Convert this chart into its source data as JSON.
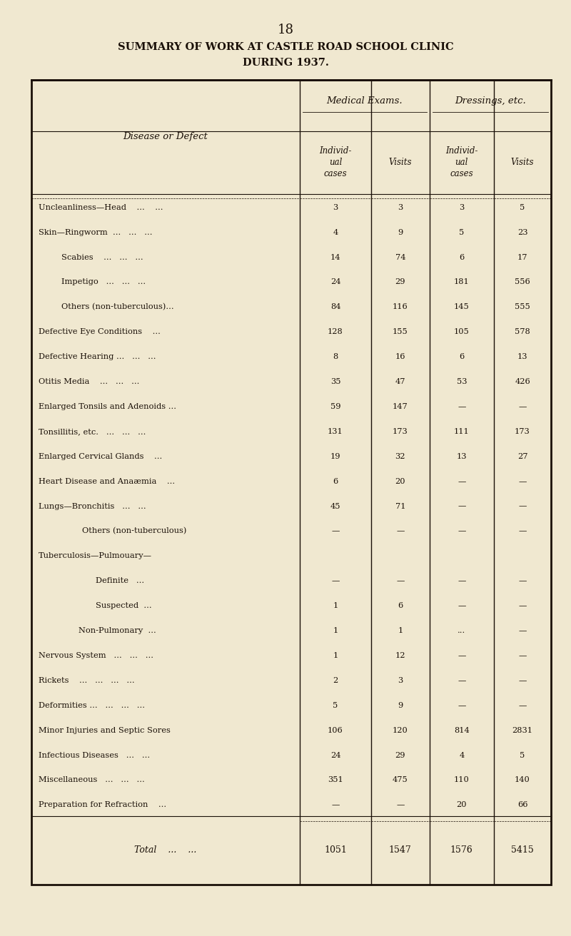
{
  "page_number": "18",
  "title_line1": "SUMMARY OF WORK AT CASTLE ROAD SCHOOL CLINIC",
  "title_line2": "DURING 1937.",
  "bg_color": "#f0e8d0",
  "text_color": "#1a1008",
  "col_header_1": "Medical Exams.",
  "col_header_2": "Dressings, etc.",
  "sub_col_1": "Individ-\nual\ncases",
  "sub_col_2": "Visits",
  "sub_col_3": "Individ-\nual\ncases",
  "sub_col_4": "Visits",
  "row_label_col": "Disease or Defect",
  "rows": [
    {
      "label": "Uncleanliness—Head    ...    ...",
      "indent": 0,
      "v1": "3",
      "v2": "3",
      "v3": "3",
      "v4": "5"
    },
    {
      "label": "Skin—Ringworm  ...   ...   ...",
      "indent": 0,
      "v1": "4",
      "v2": "9",
      "v3": "5",
      "v4": "23"
    },
    {
      "label": "Scabies    ...   ...   ...",
      "indent": 1,
      "v1": "14",
      "v2": "74",
      "v3": "6",
      "v4": "17"
    },
    {
      "label": "Impetigo   ...   ...   ...",
      "indent": 1,
      "v1": "24",
      "v2": "29",
      "v3": "181",
      "v4": "556"
    },
    {
      "label": "Others (non-tuberculous)...",
      "indent": 1,
      "v1": "84",
      "v2": "116",
      "v3": "145",
      "v4": "555"
    },
    {
      "label": "Defective Eye Conditions    ...",
      "indent": 0,
      "v1": "128",
      "v2": "155",
      "v3": "105",
      "v4": "578"
    },
    {
      "label": "Defective Hearing ...   ...   ...",
      "indent": 0,
      "v1": "8",
      "v2": "16",
      "v3": "6",
      "v4": "13"
    },
    {
      "label": "Otitis Media    ...   ...   ...",
      "indent": 0,
      "v1": "35",
      "v2": "47",
      "v3": "53",
      "v4": "426"
    },
    {
      "label": "Enlarged Tonsils and Adenoids ...",
      "indent": 0,
      "v1": "59",
      "v2": "147",
      "v3": "—",
      "v4": "—"
    },
    {
      "label": "Tonsillitis, etc.   ...   ...   ...",
      "indent": 0,
      "v1": "131",
      "v2": "173",
      "v3": "111",
      "v4": "173"
    },
    {
      "label": "Enlarged Cervical Glands    ...",
      "indent": 0,
      "v1": "19",
      "v2": "32",
      "v3": "13",
      "v4": "27"
    },
    {
      "label": "Heart Disease and Anaæmia    ...",
      "indent": 0,
      "v1": "6",
      "v2": "20",
      "v3": "—",
      "v4": "—"
    },
    {
      "label": "Lungs—Bronchitis   ...   ...",
      "indent": 0,
      "v1": "45",
      "v2": "71",
      "v3": "—",
      "v4": "—"
    },
    {
      "label": "        Others (non-tuberculous)",
      "indent": 1,
      "v1": "—",
      "v2": "—",
      "v3": "—",
      "v4": "—"
    },
    {
      "label": "Tuberculosis—Pulmouary—",
      "indent": 0,
      "v1": "",
      "v2": "",
      "v3": "",
      "v4": ""
    },
    {
      "label": "Definite   ...",
      "indent": 3,
      "v1": "—",
      "v2": "—",
      "v3": "—",
      "v4": "—"
    },
    {
      "label": "Suspected  ...",
      "indent": 3,
      "v1": "1",
      "v2": "6",
      "v3": "—",
      "v4": "—"
    },
    {
      "label": "Non-Pulmonary  ...",
      "indent": 2,
      "v1": "1",
      "v2": "1",
      "v3": "...",
      "v4": "—"
    },
    {
      "label": "Nervous System   ...   ...   ...",
      "indent": 0,
      "v1": "1",
      "v2": "12",
      "v3": "—",
      "v4": "—"
    },
    {
      "label": "Rickets    ...   ...   ...   ...",
      "indent": 0,
      "v1": "2",
      "v2": "3",
      "v3": "—",
      "v4": "—"
    },
    {
      "label": "Deformities ...   ...   ...   ...",
      "indent": 0,
      "v1": "5",
      "v2": "9",
      "v3": "—",
      "v4": "—"
    },
    {
      "label": "Minor Injuries and Septic Sores",
      "indent": 0,
      "v1": "106",
      "v2": "120",
      "v3": "814",
      "v4": "2831"
    },
    {
      "label": "Infectious Diseases   ...   ...",
      "indent": 0,
      "v1": "24",
      "v2": "29",
      "v3": "4",
      "v4": "5"
    },
    {
      "label": "Miscellaneous   ...   ...   ...",
      "indent": 0,
      "v1": "351",
      "v2": "475",
      "v3": "110",
      "v4": "140"
    },
    {
      "label": "Preparation for Refraction    ...",
      "indent": 0,
      "v1": "—",
      "v2": "—",
      "v3": "20",
      "v4": "66"
    }
  ],
  "total_label": "Total    ...    ...",
  "total_v1": "1051",
  "total_v2": "1547",
  "total_v3": "1576",
  "total_v4": "5415"
}
